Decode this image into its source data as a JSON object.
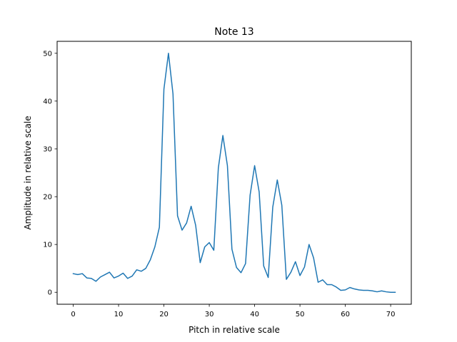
{
  "chart_data": {
    "type": "line",
    "title": "Note 13",
    "xlabel": "Pitch in relative scale",
    "ylabel": "Amplitude in relative scale",
    "xlim": [
      -3.55,
      74.55
    ],
    "ylim": [
      -2.5,
      52.5
    ],
    "xticks": [
      0,
      10,
      20,
      30,
      40,
      50,
      60,
      70
    ],
    "yticks": [
      0,
      10,
      20,
      30,
      40,
      50
    ],
    "grid": false,
    "series": [
      {
        "color": "#1f77b4",
        "x": [
          0,
          1,
          2,
          3,
          4,
          5,
          6,
          7,
          8,
          9,
          10,
          11,
          12,
          13,
          14,
          15,
          16,
          17,
          18,
          19,
          20,
          21,
          22,
          23,
          24,
          25,
          26,
          27,
          28,
          29,
          30,
          31,
          32,
          33,
          34,
          35,
          36,
          37,
          38,
          39,
          40,
          41,
          42,
          43,
          44,
          45,
          46,
          47,
          48,
          49,
          50,
          51,
          52,
          53,
          54,
          55,
          56,
          57,
          58,
          59,
          60,
          61,
          62,
          63,
          64,
          65,
          66,
          67,
          68,
          69,
          70,
          71
        ],
        "values": [
          3.9,
          3.7,
          3.9,
          3.0,
          2.9,
          2.3,
          3.2,
          3.7,
          4.2,
          3.0,
          3.4,
          4.0,
          2.9,
          3.4,
          4.7,
          4.4,
          5.0,
          6.8,
          9.5,
          13.6,
          42.5,
          50.0,
          41.5,
          16.0,
          13.0,
          14.5,
          18.0,
          14.0,
          6.2,
          9.5,
          10.4,
          8.8,
          26.0,
          32.8,
          26.5,
          9.0,
          5.2,
          4.1,
          6.0,
          20.3,
          26.5,
          21.0,
          5.5,
          3.1,
          17.8,
          23.5,
          18.2,
          2.7,
          4.2,
          6.4,
          3.5,
          5.3,
          10.0,
          7.2,
          2.1,
          2.6,
          1.6,
          1.6,
          1.1,
          0.4,
          0.5,
          1.0,
          0.7,
          0.5,
          0.4,
          0.4,
          0.3,
          0.1,
          0.3,
          0.1,
          0.0,
          0.0
        ]
      }
    ]
  }
}
